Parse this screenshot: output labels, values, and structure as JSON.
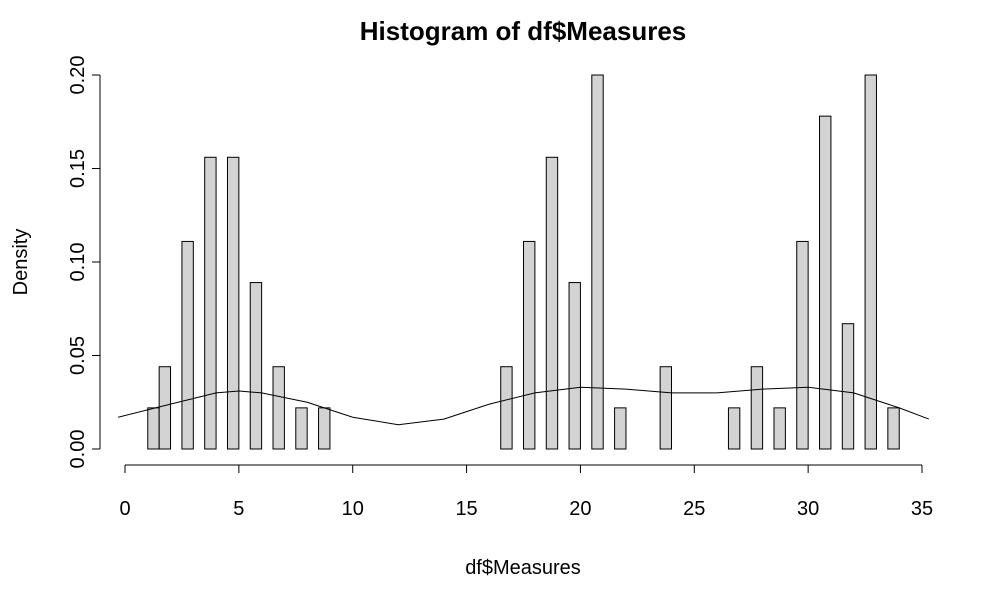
{
  "chart_data": {
    "type": "histogram",
    "title": "Histogram of df$Measures",
    "x_label": "df$Measures",
    "y_label": "Density",
    "bins": [
      1,
      1.5,
      2,
      2.5,
      3,
      3.5,
      4,
      4.5,
      5,
      5.5,
      6,
      6.5,
      7,
      7.5,
      8,
      8.5,
      9,
      9.5,
      10,
      10.5,
      11,
      11.5,
      12,
      12.5,
      13,
      13.5,
      14,
      14.5,
      15,
      15.5,
      16,
      16.5,
      17,
      17.5,
      18,
      18.5,
      19,
      19.5,
      20,
      20.5,
      21,
      21.5,
      22,
      22.5,
      23,
      23.5,
      24,
      24.5,
      25,
      25.5,
      26,
      26.5,
      27,
      27.5,
      28,
      28.5,
      29,
      29.5,
      30,
      30.5,
      31,
      31.5,
      32,
      32.5,
      33,
      33.5,
      34
    ],
    "values": [
      0.022,
      0.044,
      0,
      0.111,
      0,
      0.156,
      0,
      0.156,
      0,
      0.089,
      0,
      0.044,
      0,
      0.022,
      0,
      0.022,
      0,
      0,
      0,
      0,
      0,
      0,
      0,
      0,
      0,
      0,
      0,
      0,
      0,
      0,
      0,
      0.044,
      0,
      0.111,
      0,
      0.156,
      0,
      0.089,
      0,
      0.2,
      0,
      0.022,
      0,
      0,
      0,
      0.044,
      0,
      0,
      0,
      0,
      0,
      0.022,
      0,
      0.044,
      0,
      0.022,
      0,
      0.111,
      0,
      0.178,
      0,
      0.067,
      0,
      0.2,
      0,
      0.022
    ],
    "color": "#d3d3d3",
    "curve": {
      "x": [
        -0.3,
        2,
        4,
        5,
        6,
        8,
        10,
        12,
        14,
        16,
        18,
        20,
        22,
        24,
        26,
        28,
        30,
        32,
        34,
        35.3
      ],
      "values": [
        0.017,
        0.024,
        0.03,
        0.031,
        0.03,
        0.025,
        0.017,
        0.013,
        0.016,
        0.024,
        0.03,
        0.033,
        0.032,
        0.03,
        0.03,
        0.032,
        0.033,
        0.03,
        0.022,
        0.016
      ]
    },
    "xlim": [
      0,
      35
    ],
    "xticks": [
      0,
      5,
      10,
      15,
      20,
      25,
      30,
      35
    ],
    "ylim": [
      0,
      0.2
    ],
    "yticks": [
      {
        "value": 0,
        "label": "0.00"
      },
      {
        "value": 0.05,
        "label": "0.05"
      },
      {
        "value": 0.1,
        "label": "0.10"
      },
      {
        "value": 0.15,
        "label": "0.15"
      },
      {
        "value": 0.2,
        "label": "0.20"
      }
    ]
  }
}
